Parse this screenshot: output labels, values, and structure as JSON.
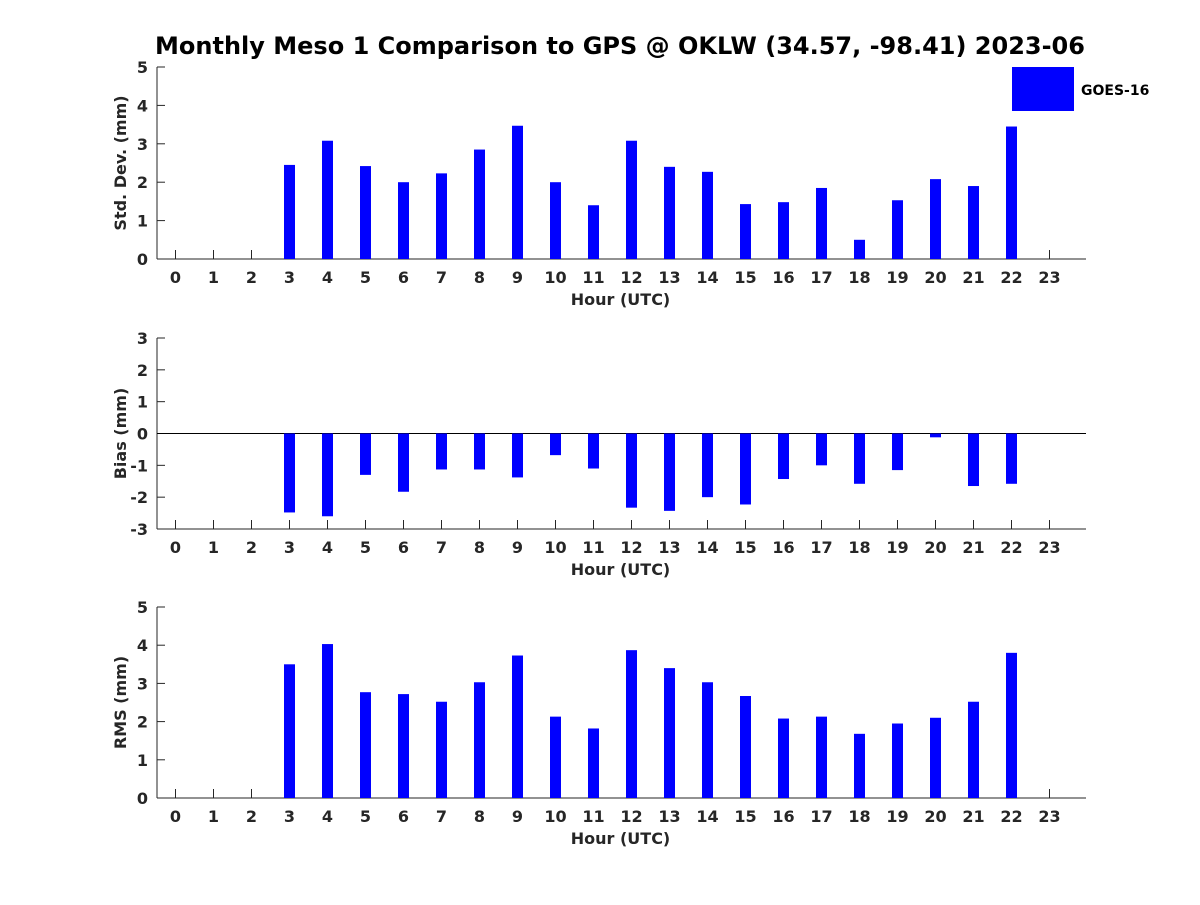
{
  "title": "Monthly Meso 1 Comparison to GPS @ OKLW (34.57, -98.41) 2023-06",
  "legend": {
    "label": "GOES-16",
    "color": "#0000ff",
    "placement": "top-right"
  },
  "chart_data": [
    {
      "type": "bar",
      "name": "std-dev",
      "xlabel": "Hour (UTC)",
      "ylabel": "Std. Dev. (mm)",
      "ylim": [
        0,
        5
      ],
      "yticks": [
        0,
        1,
        2,
        3,
        4,
        5
      ],
      "categories": [
        0,
        1,
        2,
        3,
        4,
        5,
        6,
        7,
        8,
        9,
        10,
        11,
        12,
        13,
        14,
        15,
        16,
        17,
        18,
        19,
        20,
        21,
        22,
        23
      ],
      "series": [
        {
          "name": "GOES-16",
          "color": "#0000ff",
          "values": [
            null,
            null,
            null,
            2.45,
            3.08,
            2.42,
            2.0,
            2.23,
            2.85,
            3.47,
            2.0,
            1.4,
            3.08,
            2.4,
            2.27,
            1.43,
            1.48,
            1.85,
            0.5,
            1.53,
            2.08,
            1.9,
            3.45,
            null
          ]
        }
      ]
    },
    {
      "type": "bar",
      "name": "bias",
      "xlabel": "Hour (UTC)",
      "ylabel": "Bias (mm)",
      "ylim": [
        -3,
        3
      ],
      "yticks": [
        -3,
        -2,
        -1,
        0,
        1,
        2,
        3
      ],
      "zero_line": true,
      "categories": [
        0,
        1,
        2,
        3,
        4,
        5,
        6,
        7,
        8,
        9,
        10,
        11,
        12,
        13,
        14,
        15,
        16,
        17,
        18,
        19,
        20,
        21,
        22,
        23
      ],
      "series": [
        {
          "name": "GOES-16",
          "color": "#0000ff",
          "values": [
            null,
            null,
            null,
            -2.48,
            -2.6,
            -1.3,
            -1.83,
            -1.13,
            -1.13,
            -1.38,
            -0.68,
            -1.1,
            -2.33,
            -2.43,
            -2.0,
            -2.23,
            -1.43,
            -1.0,
            -1.58,
            -1.15,
            -0.12,
            -1.65,
            -1.58,
            null
          ]
        }
      ]
    },
    {
      "type": "bar",
      "name": "rms",
      "xlabel": "Hour (UTC)",
      "ylabel": "RMS (mm)",
      "ylim": [
        0,
        5
      ],
      "yticks": [
        0,
        1,
        2,
        3,
        4,
        5
      ],
      "categories": [
        0,
        1,
        2,
        3,
        4,
        5,
        6,
        7,
        8,
        9,
        10,
        11,
        12,
        13,
        14,
        15,
        16,
        17,
        18,
        19,
        20,
        21,
        22,
        23
      ],
      "series": [
        {
          "name": "GOES-16",
          "color": "#0000ff",
          "values": [
            null,
            null,
            null,
            3.5,
            4.03,
            2.77,
            2.72,
            2.52,
            3.03,
            3.73,
            2.13,
            1.82,
            3.87,
            3.4,
            3.03,
            2.67,
            2.08,
            2.13,
            1.68,
            1.95,
            2.1,
            2.52,
            3.8,
            null
          ]
        }
      ]
    }
  ]
}
